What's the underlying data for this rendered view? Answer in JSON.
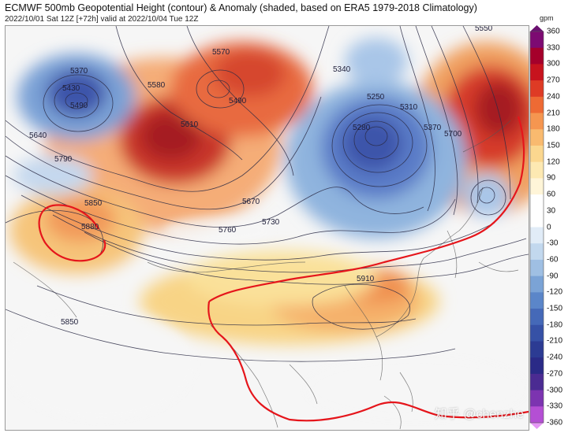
{
  "header": {
    "title": "ECMWF 500mb Geopotential Height (contour) & Anomaly (shaded, based on ERA5 1979-2018 Climatology)",
    "subtitle": "2022/10/01 Sat 12Z [+72h] valid at 2022/10/04 Tue 12Z"
  },
  "colorbar": {
    "unit": "gpm",
    "ticks": [
      "360",
      "330",
      "300",
      "270",
      "240",
      "210",
      "180",
      "150",
      "120",
      "90",
      "60",
      "30",
      "0",
      "-30",
      "-60",
      "-90",
      "-120",
      "-150",
      "-180",
      "-210",
      "-240",
      "-270",
      "-300",
      "-330",
      "-360"
    ]
  },
  "contour_labels": [
    {
      "text": "5570"
    },
    {
      "text": "5340"
    },
    {
      "text": "5490"
    },
    {
      "text": "5580"
    },
    {
      "text": "5610"
    },
    {
      "text": "5250"
    },
    {
      "text": "5310"
    },
    {
      "text": "5280"
    },
    {
      "text": "5370"
    },
    {
      "text": "5700"
    },
    {
      "text": "5640"
    },
    {
      "text": "5790"
    },
    {
      "text": "5850"
    },
    {
      "text": "5880"
    },
    {
      "text": "5670"
    },
    {
      "text": "5730"
    },
    {
      "text": "5760"
    },
    {
      "text": "5910"
    },
    {
      "text": "5850"
    },
    {
      "text": "5370"
    },
    {
      "text": "5430"
    },
    {
      "text": "5490"
    },
    {
      "text": "5550"
    }
  ],
  "watermark": "知乎 @chenzhe"
}
